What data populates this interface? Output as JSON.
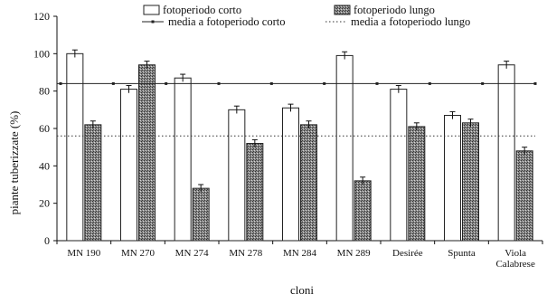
{
  "chart_data": {
    "type": "bar",
    "xlabel": "cloni",
    "ylabel": "piante tuberizzate (%)",
    "ylim": [
      0,
      120
    ],
    "yticks": [
      0,
      20,
      40,
      60,
      80,
      100,
      120
    ],
    "grid": false,
    "legend_placement": "top",
    "categories": [
      "MN 190",
      "MN 270",
      "MN 274",
      "MN 278",
      "MN 284",
      "MN 289",
      "Desirée",
      "Spunta",
      "Viola Calabrese"
    ],
    "series": [
      {
        "name": "fotoperiodo corto",
        "values": [
          100,
          81,
          87,
          70,
          71,
          99,
          81,
          67,
          94
        ],
        "errors": [
          2,
          2,
          2,
          2,
          2,
          2,
          2,
          2,
          2
        ],
        "color": "#ffffff",
        "pattern": "none"
      },
      {
        "name": "fotoperiodo lungo",
        "values": [
          62,
          94,
          28,
          52,
          62,
          32,
          61,
          63,
          48
        ],
        "errors": [
          2,
          2,
          2,
          2,
          2,
          2,
          2,
          2,
          2
        ],
        "color": "#7a7a7a",
        "pattern": "stipple"
      }
    ],
    "reference_lines": [
      {
        "name": "media a fotoperiodo corto",
        "value": 84,
        "style": "solid-with-markers"
      },
      {
        "name": "media a fotoperiodo lungo",
        "value": 56,
        "style": "dotted"
      }
    ]
  }
}
